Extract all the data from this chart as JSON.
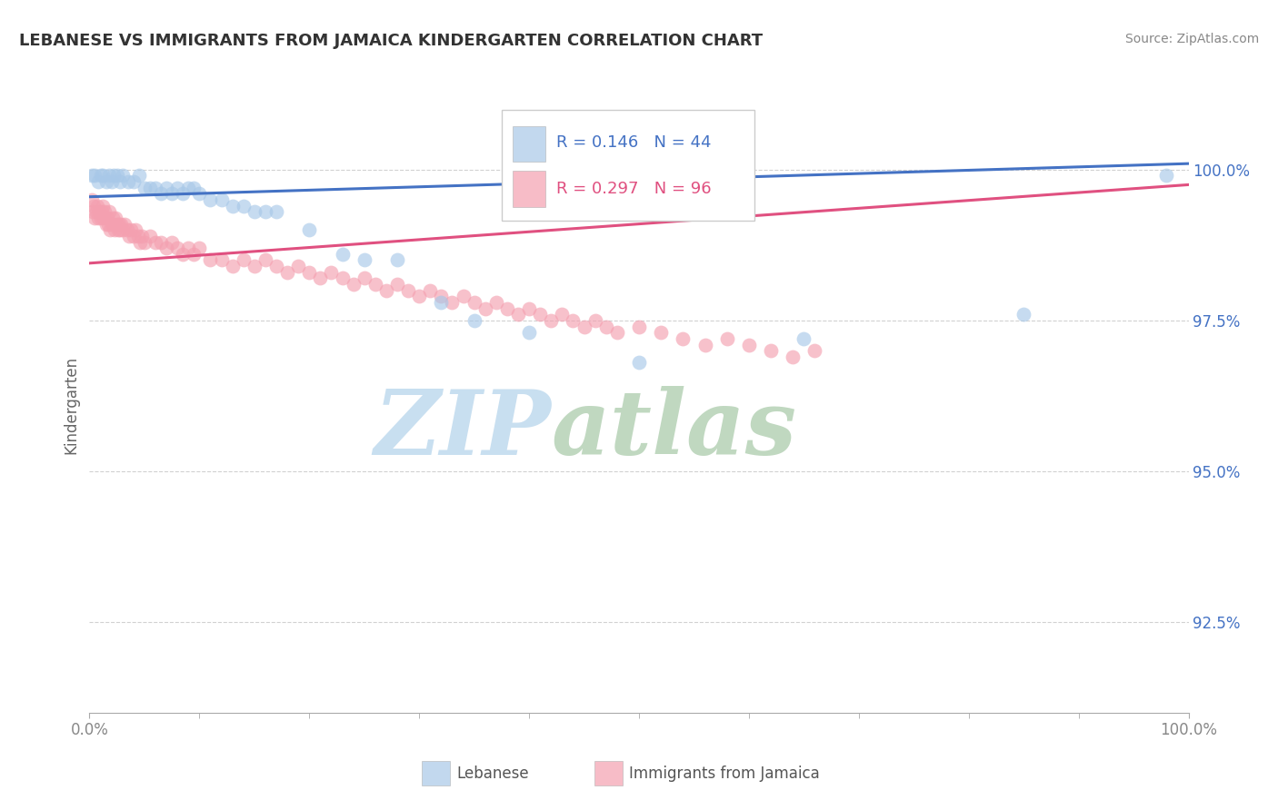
{
  "title": "LEBANESE VS IMMIGRANTS FROM JAMAICA KINDERGARTEN CORRELATION CHART",
  "source_text": "Source: ZipAtlas.com",
  "ylabel": "Kindergarten",
  "legend_labels": [
    "Lebanese",
    "Immigrants from Jamaica"
  ],
  "legend_R": [
    0.146,
    0.297
  ],
  "legend_N": [
    44,
    96
  ],
  "blue_color": "#a8c8e8",
  "pink_color": "#f4a0b0",
  "trend_blue": "#4472c4",
  "trend_pink": "#e05080",
  "ytick_labels": [
    "92.5%",
    "95.0%",
    "97.5%",
    "100.0%"
  ],
  "ytick_values": [
    0.925,
    0.95,
    0.975,
    1.0
  ],
  "xlim": [
    0.0,
    1.0
  ],
  "ylim": [
    0.91,
    1.012
  ],
  "blue_x": [
    0.002,
    0.005,
    0.008,
    0.01,
    0.012,
    0.015,
    0.018,
    0.02,
    0.022,
    0.025,
    0.028,
    0.03,
    0.035,
    0.04,
    0.045,
    0.05,
    0.055,
    0.06,
    0.065,
    0.07,
    0.075,
    0.08,
    0.085,
    0.09,
    0.095,
    0.1,
    0.11,
    0.12,
    0.13,
    0.14,
    0.15,
    0.16,
    0.17,
    0.2,
    0.23,
    0.25,
    0.28,
    0.32,
    0.35,
    0.4,
    0.5,
    0.65,
    0.85,
    0.98
  ],
  "blue_y": [
    0.999,
    0.999,
    0.998,
    0.999,
    0.999,
    0.998,
    0.999,
    0.998,
    0.999,
    0.999,
    0.998,
    0.999,
    0.998,
    0.998,
    0.999,
    0.997,
    0.997,
    0.997,
    0.996,
    0.997,
    0.996,
    0.997,
    0.996,
    0.997,
    0.997,
    0.996,
    0.995,
    0.995,
    0.994,
    0.994,
    0.993,
    0.993,
    0.993,
    0.99,
    0.986,
    0.985,
    0.985,
    0.978,
    0.975,
    0.973,
    0.968,
    0.972,
    0.976,
    0.999
  ],
  "pink_x": [
    0.002,
    0.003,
    0.004,
    0.005,
    0.006,
    0.007,
    0.008,
    0.009,
    0.01,
    0.011,
    0.012,
    0.013,
    0.014,
    0.015,
    0.016,
    0.017,
    0.018,
    0.019,
    0.02,
    0.021,
    0.022,
    0.023,
    0.024,
    0.025,
    0.026,
    0.027,
    0.028,
    0.029,
    0.03,
    0.032,
    0.034,
    0.036,
    0.038,
    0.04,
    0.042,
    0.044,
    0.046,
    0.048,
    0.05,
    0.055,
    0.06,
    0.065,
    0.07,
    0.075,
    0.08,
    0.085,
    0.09,
    0.095,
    0.1,
    0.11,
    0.12,
    0.13,
    0.14,
    0.15,
    0.16,
    0.17,
    0.18,
    0.19,
    0.2,
    0.21,
    0.22,
    0.23,
    0.24,
    0.25,
    0.26,
    0.27,
    0.28,
    0.29,
    0.3,
    0.31,
    0.32,
    0.33,
    0.34,
    0.35,
    0.36,
    0.37,
    0.38,
    0.39,
    0.4,
    0.41,
    0.42,
    0.43,
    0.44,
    0.45,
    0.46,
    0.47,
    0.48,
    0.5,
    0.52,
    0.54,
    0.56,
    0.58,
    0.6,
    0.62,
    0.64,
    0.66
  ],
  "pink_y": [
    0.995,
    0.993,
    0.994,
    0.992,
    0.993,
    0.994,
    0.992,
    0.993,
    0.992,
    0.993,
    0.994,
    0.992,
    0.993,
    0.991,
    0.992,
    0.991,
    0.993,
    0.99,
    0.991,
    0.992,
    0.991,
    0.99,
    0.992,
    0.991,
    0.99,
    0.991,
    0.99,
    0.991,
    0.99,
    0.991,
    0.99,
    0.989,
    0.99,
    0.989,
    0.99,
    0.989,
    0.988,
    0.989,
    0.988,
    0.989,
    0.988,
    0.988,
    0.987,
    0.988,
    0.987,
    0.986,
    0.987,
    0.986,
    0.987,
    0.985,
    0.985,
    0.984,
    0.985,
    0.984,
    0.985,
    0.984,
    0.983,
    0.984,
    0.983,
    0.982,
    0.983,
    0.982,
    0.981,
    0.982,
    0.981,
    0.98,
    0.981,
    0.98,
    0.979,
    0.98,
    0.979,
    0.978,
    0.979,
    0.978,
    0.977,
    0.978,
    0.977,
    0.976,
    0.977,
    0.976,
    0.975,
    0.976,
    0.975,
    0.974,
    0.975,
    0.974,
    0.973,
    0.974,
    0.973,
    0.972,
    0.971,
    0.972,
    0.971,
    0.97,
    0.969,
    0.97
  ],
  "watermark_ZIP": "ZIP",
  "watermark_atlas": "atlas",
  "watermark_color_ZIP": "#c8dff0",
  "watermark_color_atlas": "#c0d8c0",
  "background_color": "#ffffff",
  "grid_color": "#cccccc",
  "ytick_color": "#4472c4",
  "xtick_color": "#888888",
  "title_color": "#333333",
  "source_color": "#888888",
  "ylabel_color": "#666666"
}
